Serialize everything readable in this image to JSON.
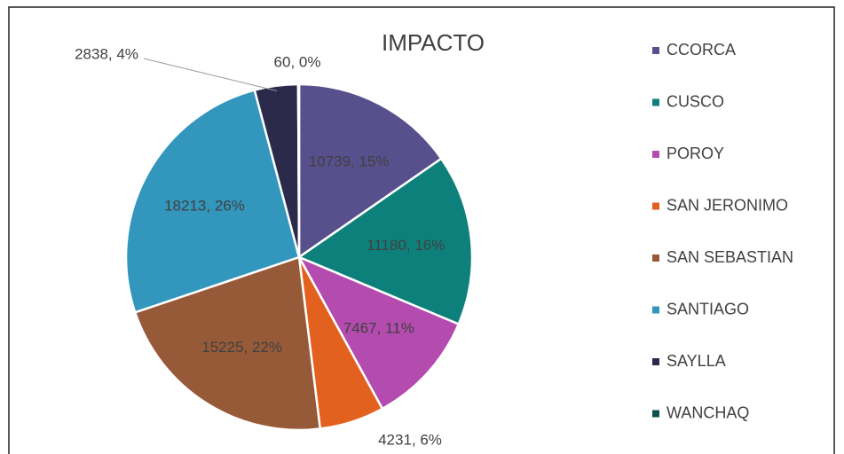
{
  "chart_data": {
    "type": "pie",
    "title": "IMPACTO",
    "categories": [
      "CCORCA",
      "CUSCO",
      "POROY",
      "SAN JERONIMO",
      "SAN SEBASTIAN",
      "SANTIAGO",
      "SAYLLA",
      "WANCHAQ"
    ],
    "values": [
      10739,
      11180,
      7467,
      4231,
      15225,
      18213,
      2838,
      60
    ],
    "value_labels": [
      "10739, 15%",
      "11180, 16%",
      "7467, 11%",
      "4231, 6%",
      "15225, 22%",
      "18213, 26%",
      "2838, 4%",
      "60, 0%"
    ],
    "colors": [
      "#58508c",
      "#0e807b",
      "#b44bae",
      "#e2611f",
      "#975a39",
      "#3296bd",
      "#2b2a4b",
      "#0c5050"
    ],
    "legend": "right"
  }
}
